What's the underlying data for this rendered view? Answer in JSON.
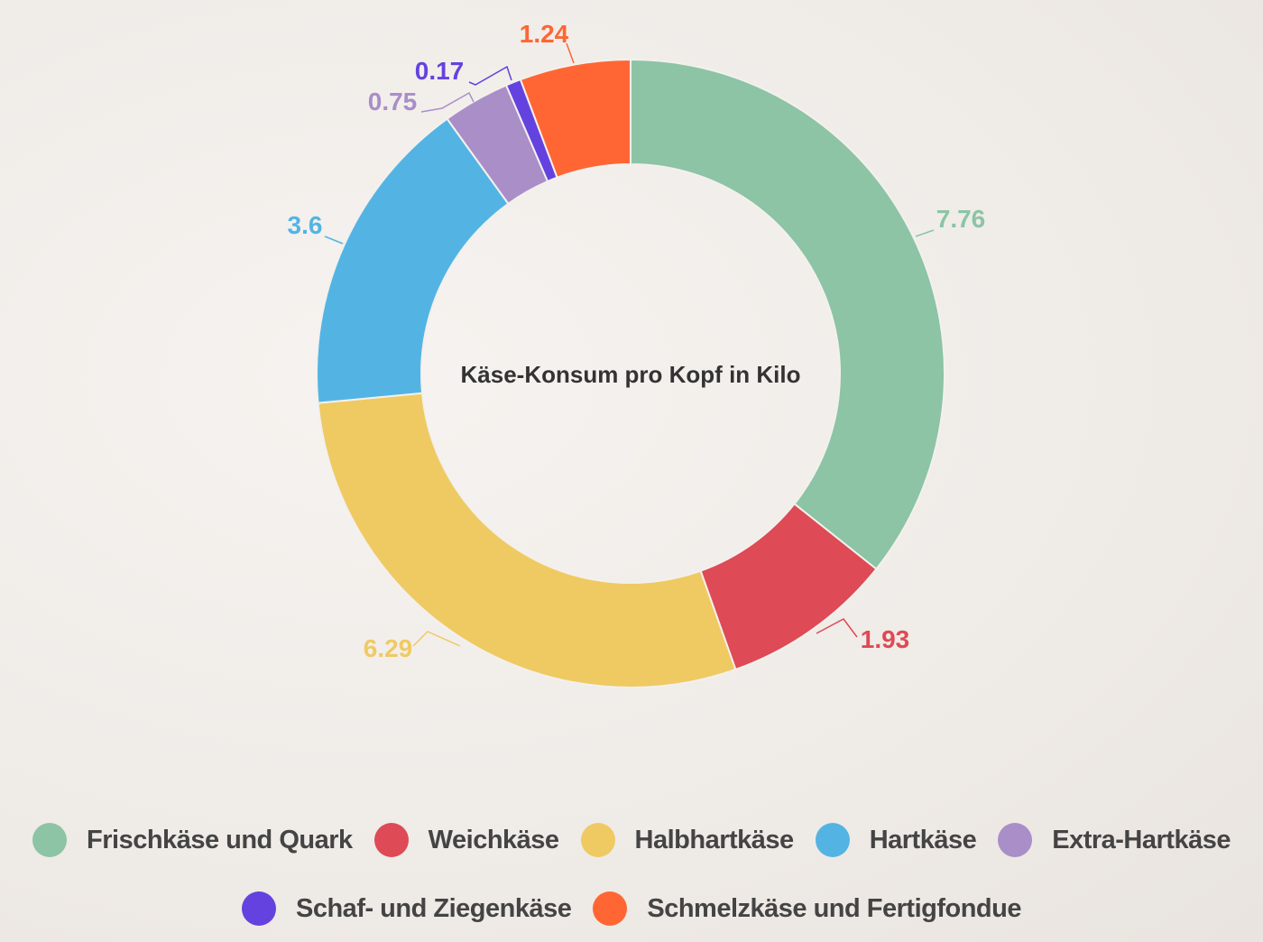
{
  "chart_data": {
    "type": "pie",
    "donut": true,
    "title": "Käse-Konsum pro Kopf in Kilo",
    "categories": [
      "Frischkäse und Quark",
      "Weichkäse",
      "Halbhartkäse",
      "Hartkäse",
      "Extra-Hartkäse",
      "Schaf- und Ziegenkäse",
      "Schmelzkäse und Fertigfondue"
    ],
    "values": [
      7.76,
      1.93,
      6.29,
      3.6,
      0.75,
      0.17,
      1.24
    ],
    "labels": [
      "7.76",
      "1.93",
      "6.29",
      "3.6",
      "0.75",
      "0.17",
      "1.24"
    ],
    "colors": [
      "#8cc4a5",
      "#de4a55",
      "#efca63",
      "#53b4e4",
      "#a98ec8",
      "#6442e0",
      "#ff6633"
    ],
    "legend": "bottom"
  }
}
